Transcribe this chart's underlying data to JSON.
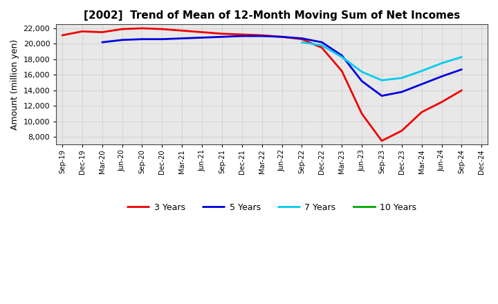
{
  "title": "[2002]  Trend of Mean of 12-Month Moving Sum of Net Incomes",
  "ylabel": "Amount (million yen)",
  "background_color": "#ffffff",
  "plot_bg_color": "#e8e8e8",
  "grid_color": "#bbbbbb",
  "ylim": [
    7000,
    22500
  ],
  "yticks": [
    8000,
    10000,
    12000,
    14000,
    16000,
    18000,
    20000,
    22000
  ],
  "x_labels": [
    "Sep-19",
    "Dec-19",
    "Mar-20",
    "Jun-20",
    "Sep-20",
    "Dec-20",
    "Mar-21",
    "Jun-21",
    "Sep-21",
    "Dec-21",
    "Mar-22",
    "Jun-22",
    "Sep-22",
    "Dec-22",
    "Mar-23",
    "Jun-23",
    "Sep-23",
    "Dec-23",
    "Mar-24",
    "Jun-24",
    "Sep-24",
    "Dec-24"
  ],
  "series": {
    "3 Years": {
      "color": "#ee0000",
      "linewidth": 2.0,
      "data": [
        21100,
        21600,
        21500,
        21900,
        22000,
        21900,
        21700,
        21500,
        21300,
        21200,
        21100,
        20900,
        20600,
        19500,
        16500,
        11000,
        7500,
        8800,
        11200,
        12500,
        14000,
        null
      ]
    },
    "5 Years": {
      "color": "#0000dd",
      "linewidth": 2.0,
      "data": [
        null,
        null,
        20200,
        20500,
        20600,
        20600,
        20700,
        20800,
        20900,
        21000,
        21000,
        20900,
        20700,
        20200,
        18500,
        15200,
        13300,
        13800,
        14800,
        15800,
        16700,
        null
      ]
    },
    "7 Years": {
      "color": "#00ccee",
      "linewidth": 2.0,
      "data": [
        null,
        null,
        null,
        null,
        null,
        null,
        null,
        null,
        null,
        null,
        null,
        null,
        20200,
        19800,
        18300,
        16400,
        15300,
        15600,
        16500,
        17500,
        18300,
        null
      ]
    },
    "10 Years": {
      "color": "#00aa00",
      "linewidth": 2.0,
      "data": [
        null,
        null,
        null,
        null,
        null,
        null,
        null,
        null,
        null,
        null,
        null,
        null,
        null,
        null,
        null,
        null,
        null,
        null,
        null,
        null,
        null,
        null
      ]
    }
  }
}
